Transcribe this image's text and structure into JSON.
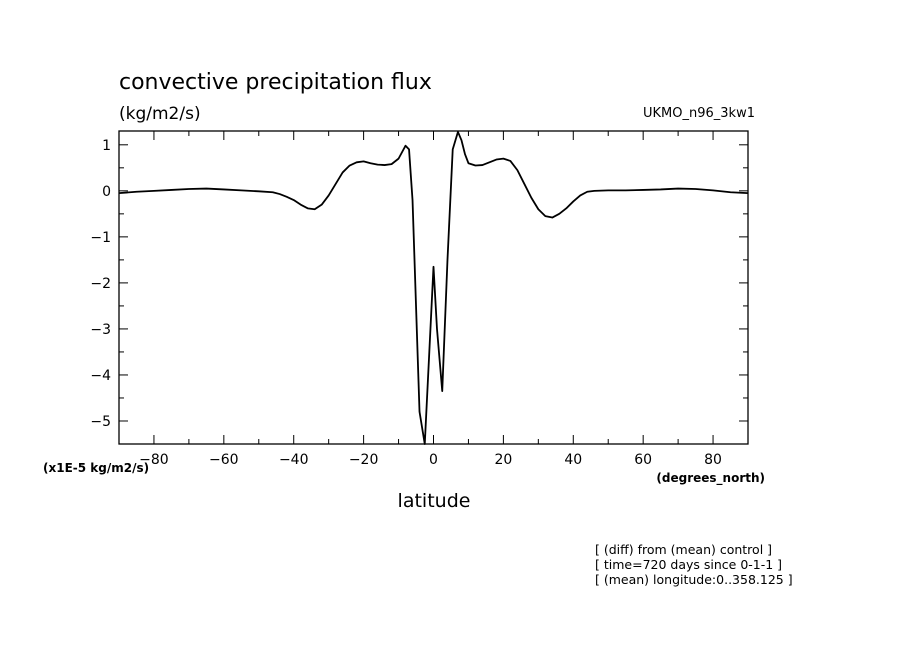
{
  "chart_data": {
    "type": "line",
    "title": "convective precipitation flux",
    "units": "(kg/m2/s)",
    "model": "UKMO_n96_3kw1",
    "y_scale_label": "(x1E-5 kg/m2/s)",
    "x_units_label": "(degrees_north)",
    "xlabel": "latitude",
    "ylabel": "",
    "xlim": [
      -90,
      90
    ],
    "ylim": [
      -5.5,
      1.3
    ],
    "xticks": [
      -80,
      -60,
      -40,
      -20,
      0,
      20,
      40,
      60,
      80
    ],
    "yticks": [
      1,
      0,
      -1,
      -2,
      -3,
      -4,
      -5
    ],
    "notes": [
      "[ (diff) from (mean) control ]",
      "[ time=720 days since 0-1-1 ]",
      "[ (mean) longitude:0..358.125 ]"
    ],
    "series": [
      {
        "x": [
          -90,
          -85,
          -80,
          -75,
          -70,
          -65,
          -60,
          -55,
          -50,
          -46,
          -44,
          -42,
          -40,
          -38,
          -36,
          -34,
          -32,
          -30,
          -28,
          -26,
          -24,
          -22,
          -20,
          -18,
          -16,
          -14,
          -12,
          -10,
          -8,
          -7,
          -6,
          -4,
          -2.5,
          -1.2,
          0,
          1,
          2.5,
          4,
          5.5,
          7,
          8,
          9,
          10,
          12,
          14,
          16,
          18,
          20,
          22,
          24,
          26,
          28,
          30,
          32,
          34,
          36,
          38,
          40,
          42,
          44,
          46,
          50,
          55,
          60,
          65,
          70,
          75,
          80,
          85,
          90
        ],
        "y": [
          -0.05,
          -0.02,
          0.0,
          0.02,
          0.04,
          0.05,
          0.03,
          0.01,
          -0.01,
          -0.03,
          -0.07,
          -0.13,
          -0.2,
          -0.3,
          -0.38,
          -0.4,
          -0.3,
          -0.1,
          0.15,
          0.4,
          0.55,
          0.62,
          0.64,
          0.6,
          0.57,
          0.56,
          0.58,
          0.7,
          0.98,
          0.9,
          -0.2,
          -4.8,
          -5.5,
          -3.5,
          -1.65,
          -3.0,
          -4.35,
          -1.5,
          0.9,
          1.28,
          1.1,
          0.8,
          0.6,
          0.55,
          0.56,
          0.62,
          0.68,
          0.7,
          0.65,
          0.45,
          0.15,
          -0.15,
          -0.4,
          -0.55,
          -0.58,
          -0.5,
          -0.38,
          -0.23,
          -0.1,
          -0.02,
          0.0,
          0.01,
          0.01,
          0.02,
          0.03,
          0.05,
          0.04,
          0.01,
          -0.03,
          -0.05
        ]
      }
    ]
  }
}
